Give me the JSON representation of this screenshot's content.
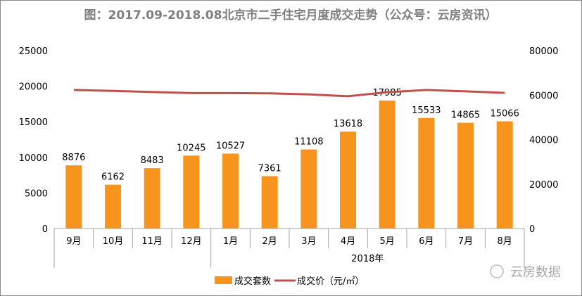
{
  "chart_data": {
    "type": "bar",
    "title": "图：2017.09-2018.08北京市二手住宅月度成交走势（公众号：云房资讯）",
    "categories": [
      "9月",
      "10月",
      "11月",
      "12月",
      "1月",
      "2月",
      "3月",
      "4月",
      "5月",
      "6月",
      "7月",
      "8月"
    ],
    "group_label": "2018年",
    "series": [
      {
        "name": "成交套数",
        "type": "bar",
        "axis": "left",
        "color": "#F7941D",
        "values": [
          8876,
          6162,
          8483,
          10245,
          10527,
          7361,
          11108,
          13618,
          17985,
          15533,
          14865,
          15066
        ]
      },
      {
        "name": "成交价（元/㎡）",
        "type": "line",
        "axis": "right",
        "color": "#C0504D",
        "values": [
          62300,
          61900,
          61400,
          60900,
          60900,
          60800,
          60300,
          59500,
          61300,
          62300,
          61700,
          61000
        ]
      }
    ],
    "ylim_left": [
      0,
      25000
    ],
    "yticks_left": [
      "0",
      "5000",
      "10000",
      "15000",
      "20000",
      "25000"
    ],
    "ylim_right": [
      0,
      80000
    ],
    "yticks_right": [
      "0",
      "20000",
      "40000",
      "60000",
      "80000"
    ],
    "grid": false,
    "legend_position": "bottom"
  },
  "watermark": "云房数据"
}
